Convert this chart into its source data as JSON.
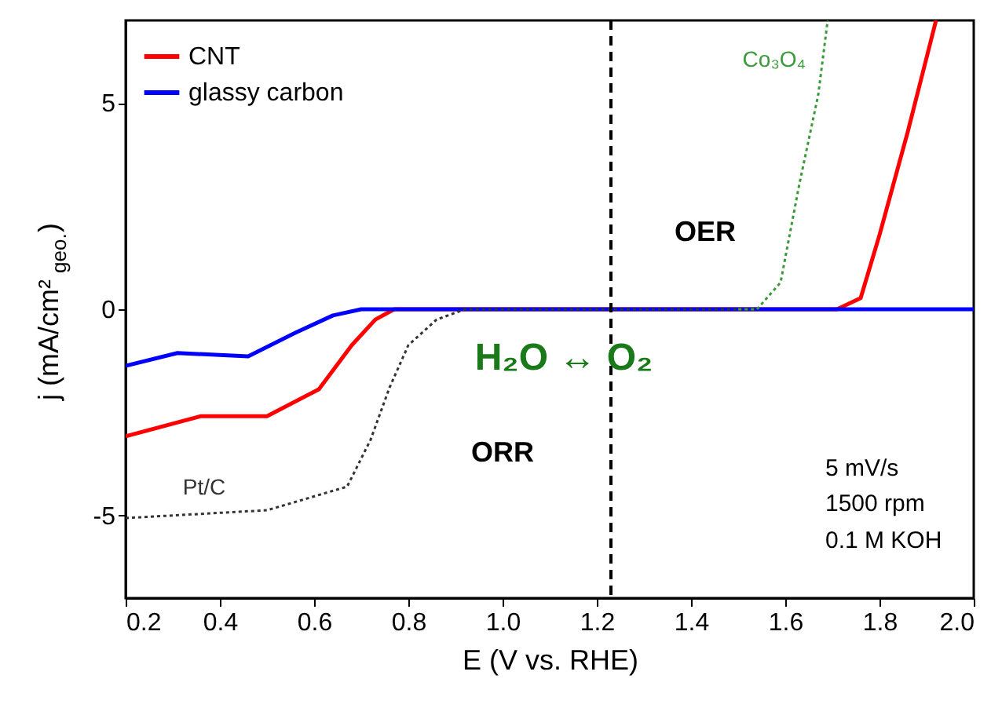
{
  "chart_data": {
    "type": "line",
    "xlabel": "E (V vs.  RHE)",
    "ylabel": "j (mA/cm²$_{geo.}$)",
    "xlim": [
      0.2,
      2.0
    ],
    "xticks": [
      0.2,
      0.4,
      0.6,
      0.8,
      {
        "value": 1,
        "label": "1.0"
      },
      1.2,
      1.4,
      1.6,
      1.8,
      {
        "value": 2,
        "label": "2.0"
      }
    ],
    "ylim": [
      -7,
      7
    ],
    "yticks": [
      -5,
      0,
      5
    ],
    "grid": false,
    "legend": "top left",
    "marker": "none",
    "series": [
      {
        "name": "CNT",
        "color": "#ff0000",
        "line_style": "solid",
        "x": [
          0.2,
          0.36,
          0.5,
          0.61,
          0.68,
          0.73,
          0.77,
          1.0,
          1.4,
          1.71,
          1.76,
          1.8,
          1.86,
          1.92
        ],
        "values": [
          -3.08,
          -2.59,
          -2.59,
          -1.94,
          -0.87,
          -0.25,
          0,
          0,
          0,
          0,
          0.27,
          1.8,
          4.3,
          7
        ]
      },
      {
        "name": "glassy carbon",
        "color": "#0000ff",
        "line_style": "solid",
        "x": [
          0.2,
          0.31,
          0.46,
          0.56,
          0.64,
          0.7,
          1.0,
          1.5,
          2.0
        ],
        "values": [
          -1.37,
          -1.06,
          -1.14,
          -0.57,
          -0.15,
          0,
          0,
          0,
          0
        ]
      },
      {
        "name": "Pt/C",
        "color": "#333333",
        "line_style": "dotted",
        "x": [
          0.2,
          0.5,
          0.67,
          0.72,
          0.76,
          0.8,
          0.86,
          0.92,
          1.2,
          1.54
        ],
        "values": [
          -5.06,
          -4.87,
          -4.3,
          -3.16,
          -1.9,
          -0.87,
          -0.25,
          0,
          0,
          0
        ]
      },
      {
        "name": "Co₃O₄",
        "color": "#3a9a3a",
        "line_style": "dotted",
        "x": [
          1.5,
          1.54,
          1.59,
          1.63,
          1.67,
          1.69
        ],
        "values": [
          0,
          0,
          0.65,
          3.04,
          5.2,
          7
        ]
      }
    ],
    "ref_lines": [
      {
        "axis": "x",
        "value": 1.23,
        "color": "#000000",
        "line_style": "dashed"
      }
    ],
    "annotations": [
      "OER",
      "ORR",
      "H₂O ↔ O₂",
      "5 mV/s",
      "1500 rpm",
      "0.1 M KOH"
    ]
  }
}
